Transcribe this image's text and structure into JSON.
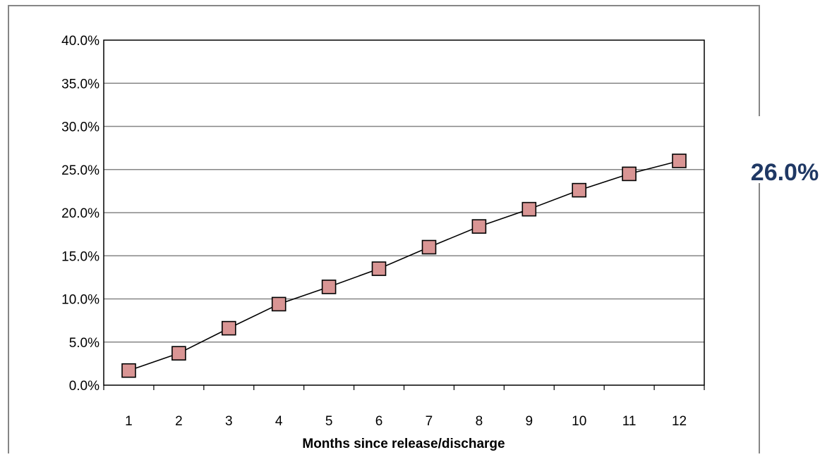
{
  "chart_data": {
    "type": "line",
    "title": "",
    "xlabel": "Months since release/discharge",
    "ylabel": "",
    "x": [
      "1",
      "2",
      "3",
      "4",
      "5",
      "6",
      "7",
      "8",
      "9",
      "10",
      "11",
      "12"
    ],
    "series": [
      {
        "values": [
          1.7,
          3.7,
          6.6,
          9.4,
          11.4,
          13.5,
          16.0,
          18.4,
          20.4,
          22.6,
          24.5,
          26.0
        ]
      }
    ],
    "ylim": [
      0,
      40
    ],
    "yticks": [
      "0.0%",
      "5.0%",
      "10.0%",
      "15.0%",
      "20.0%",
      "25.0%",
      "30.0%",
      "35.0%",
      "40.0%"
    ],
    "grid": true,
    "legend": "none",
    "callout_label": "26.0%",
    "colors": {
      "marker_fill": "#d99594",
      "marker_stroke": "#000000",
      "line": "#000000",
      "grid": "#868686",
      "frame": "#868686",
      "callout": "#1f3864"
    }
  }
}
